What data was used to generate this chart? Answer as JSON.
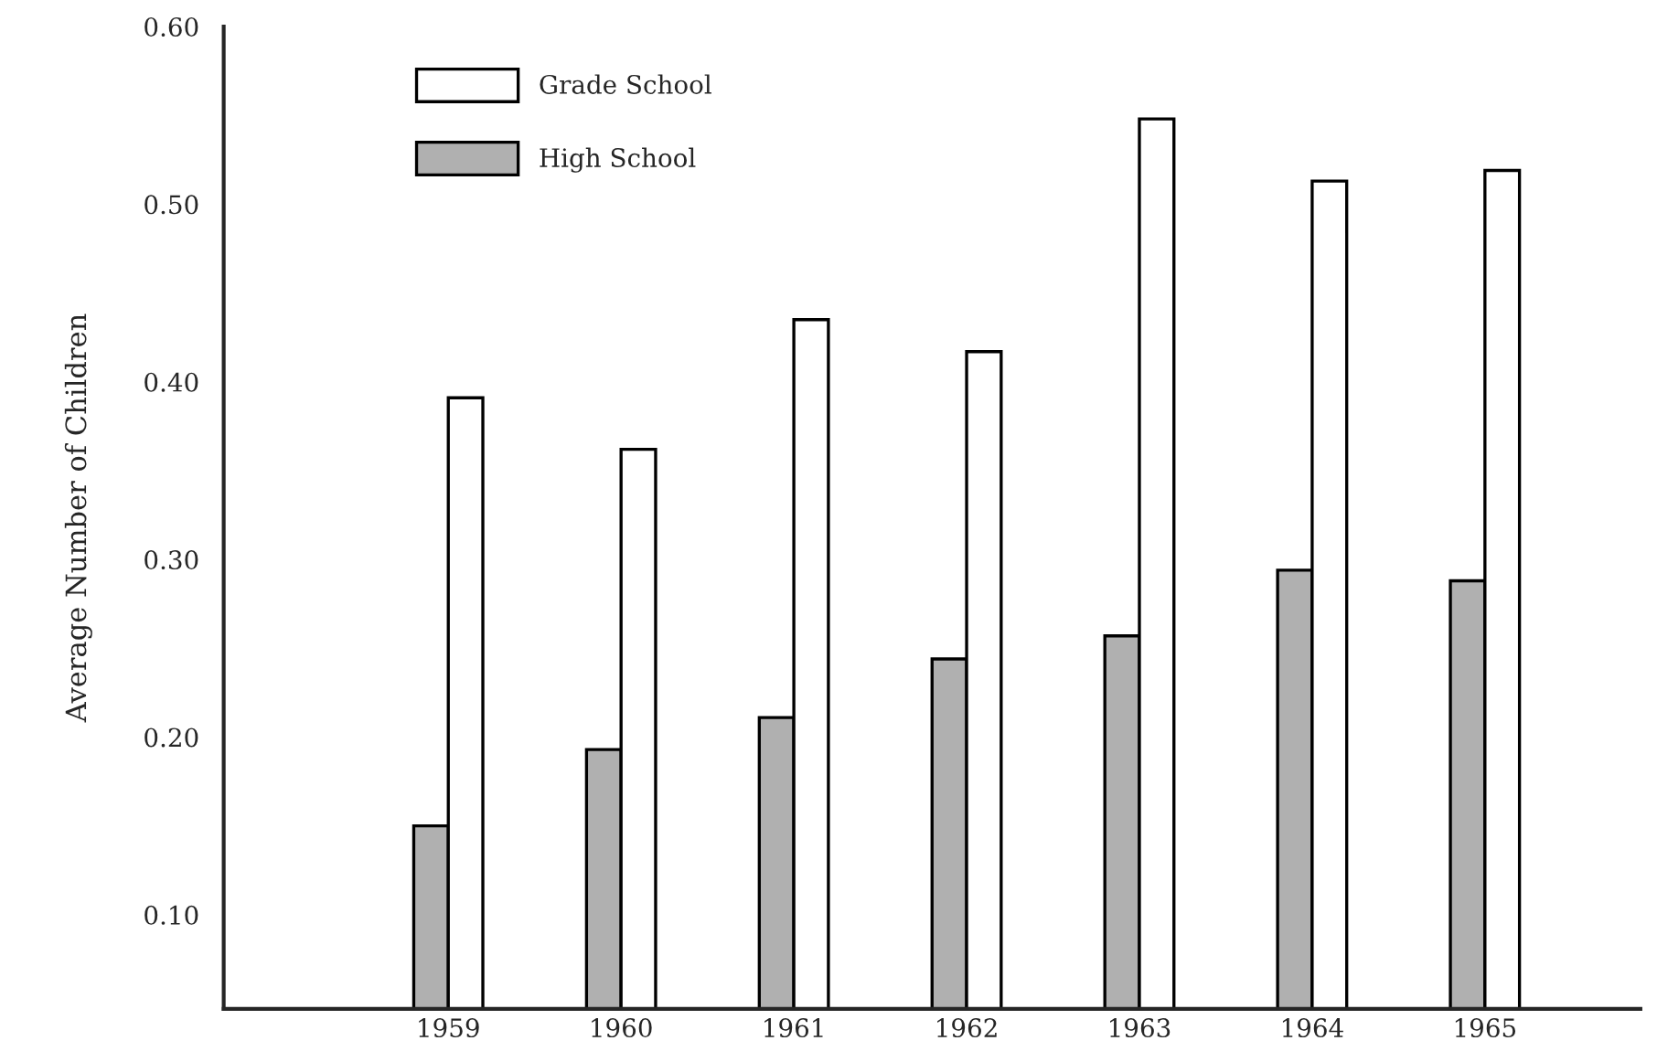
{
  "chart_data": {
    "type": "bar",
    "ylabel": "Average Number of Children",
    "categories": [
      "1959",
      "1960",
      "1961",
      "1962",
      "1963",
      "1964",
      "1965"
    ],
    "series": [
      {
        "name": "High School",
        "color": "#b0b0b0",
        "values": [
          0.15,
          0.193,
          0.211,
          0.244,
          0.257,
          0.294,
          0.288
        ]
      },
      {
        "name": "Grade School",
        "color": "#ffffff",
        "values": [
          0.391,
          0.362,
          0.435,
          0.417,
          0.548,
          0.513,
          0.519
        ]
      }
    ],
    "ylim": [
      0.047,
      0.6
    ],
    "yticks": [
      {
        "value": 0.1,
        "label": "0.10"
      },
      {
        "value": 0.2,
        "label": "0.20"
      },
      {
        "value": 0.3,
        "label": "0.30"
      },
      {
        "value": 0.4,
        "label": "0.40"
      },
      {
        "value": 0.5,
        "label": "0.50"
      },
      {
        "value": 0.6,
        "label": "0.60"
      }
    ],
    "grid": false,
    "legend": "top left"
  }
}
